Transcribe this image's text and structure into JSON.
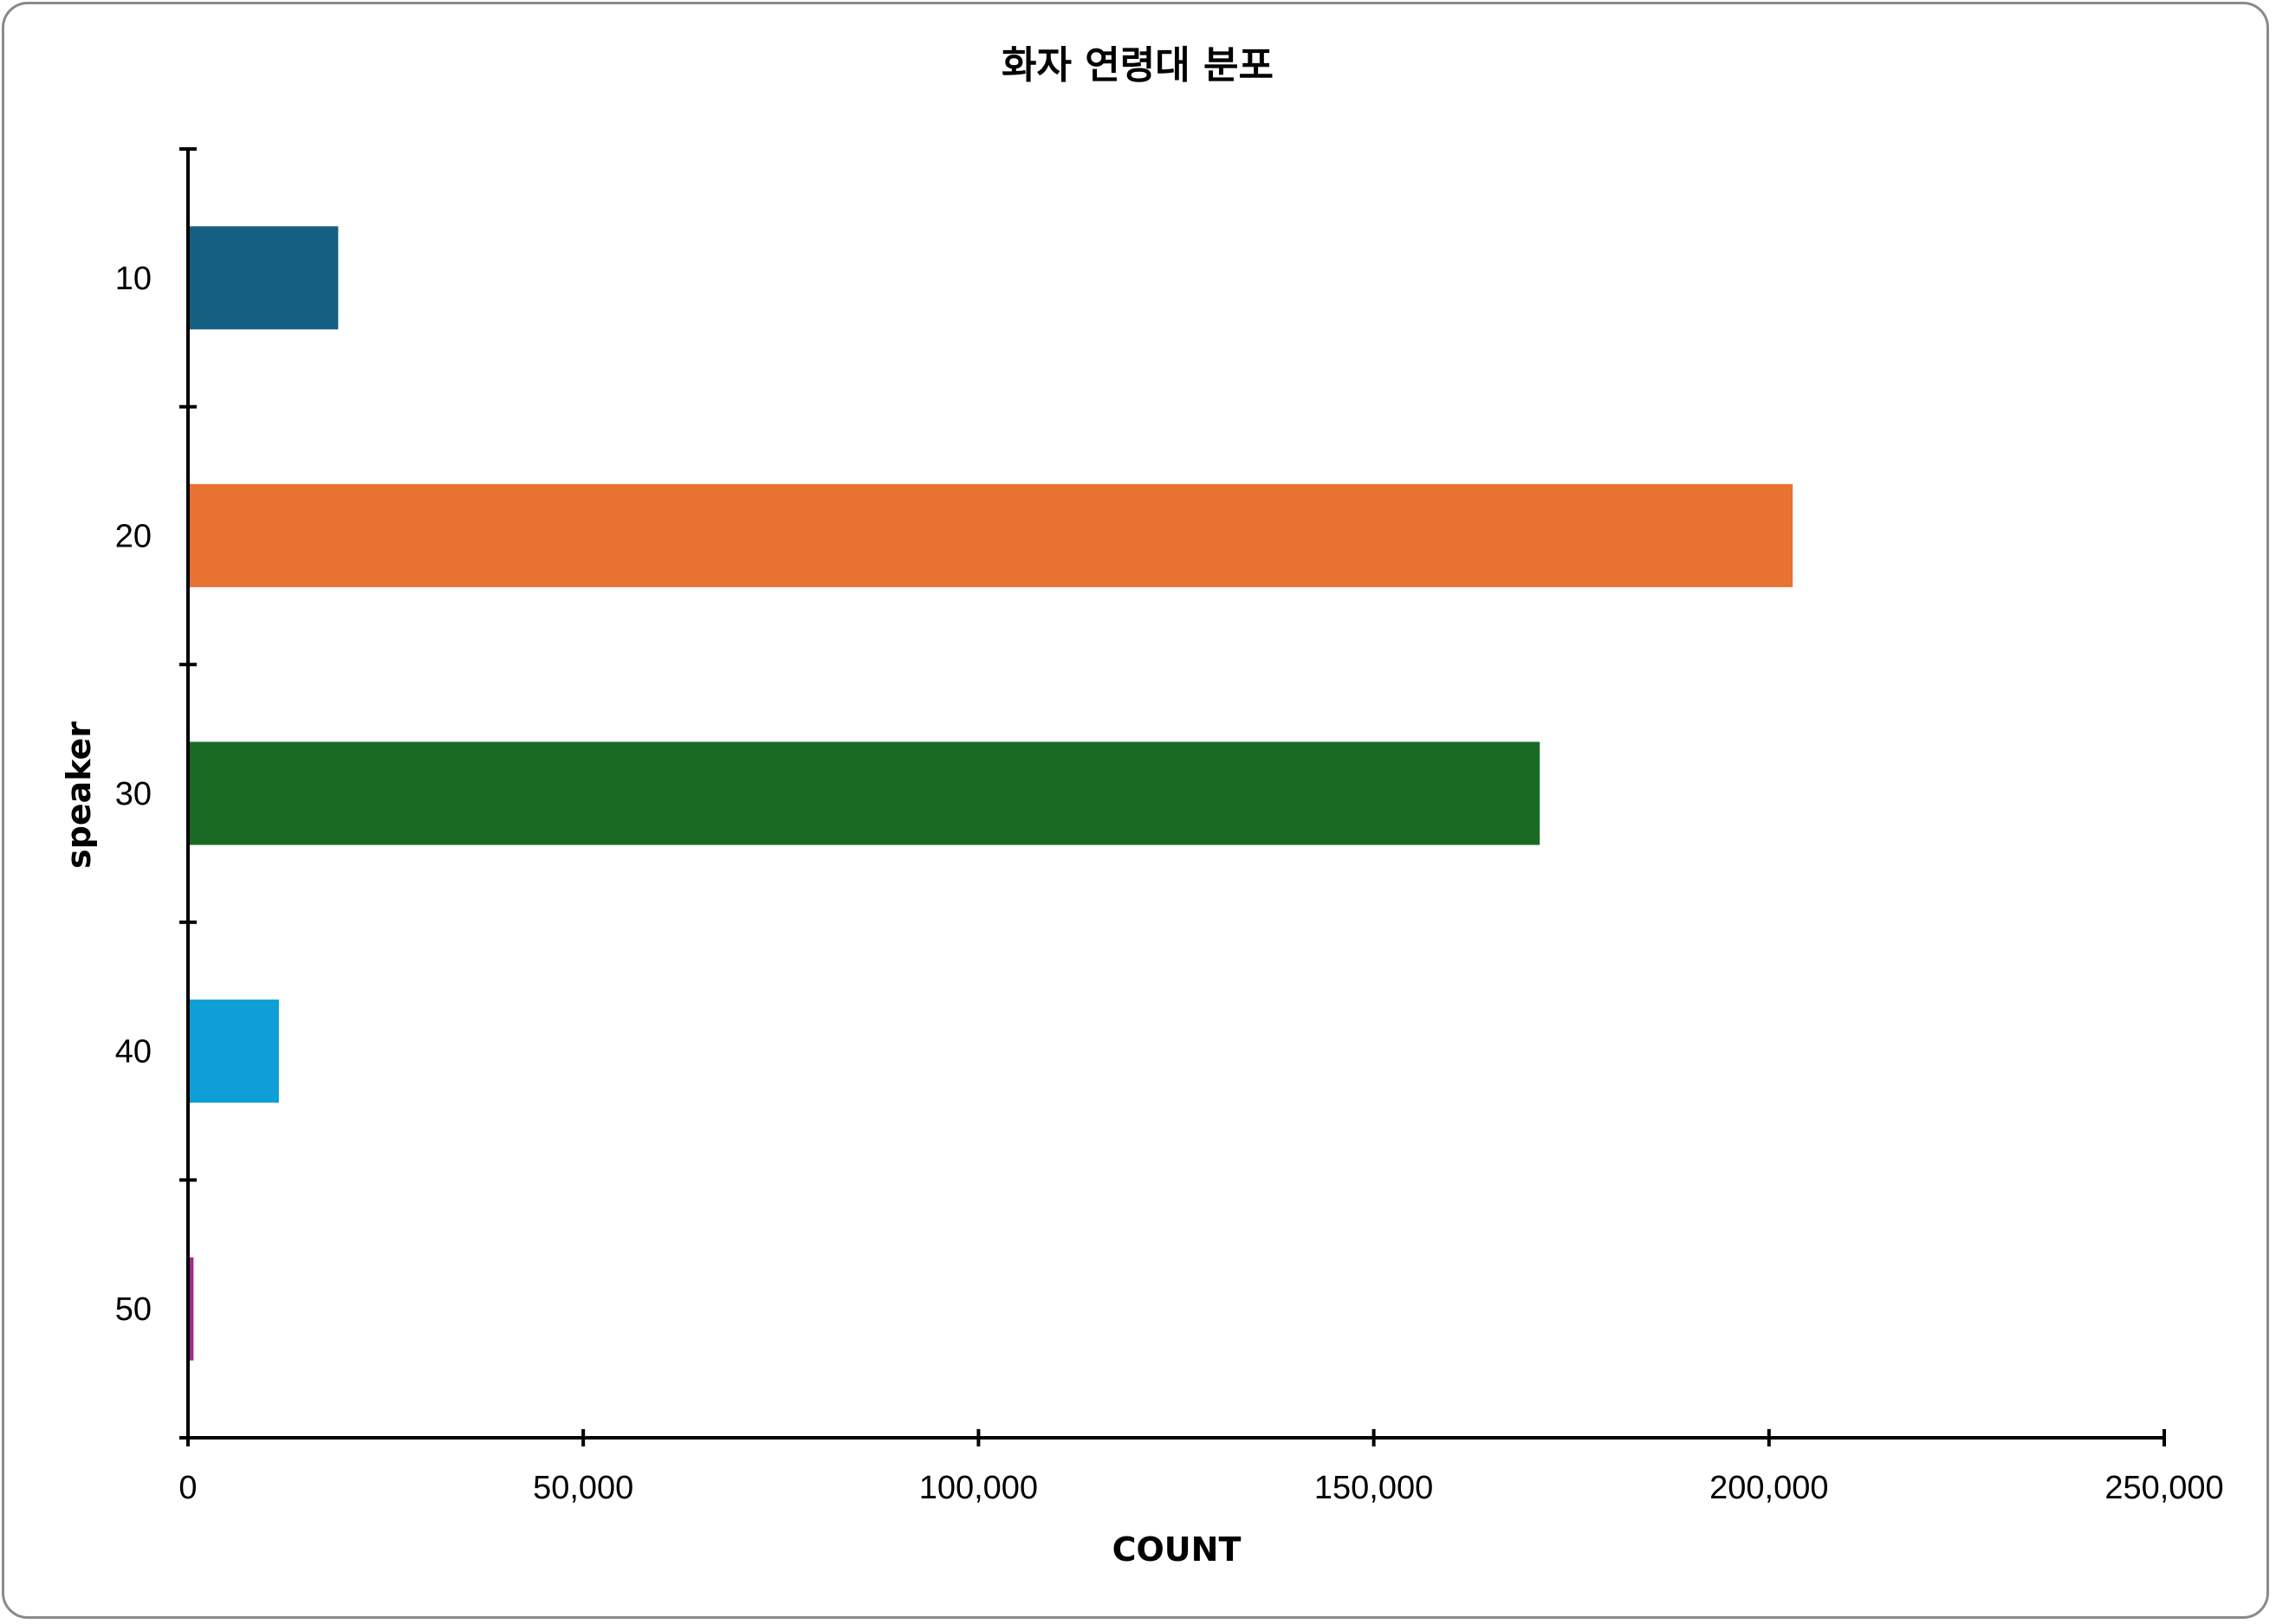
{
  "chart_data": {
    "type": "bar",
    "orientation": "horizontal",
    "title": "화자 연령대 분포",
    "xlabel": "COUNT",
    "ylabel": "speaker",
    "categories": [
      "10",
      "20",
      "30",
      "40",
      "50"
    ],
    "values": [
      19000,
      203000,
      171000,
      11500,
      700
    ],
    "colors": [
      "#155f82",
      "#e97132",
      "#196b24",
      "#0f9ed5",
      "#a02b93"
    ],
    "xlim": [
      0,
      250000
    ],
    "xticks": [
      0,
      50000,
      100000,
      150000,
      200000,
      250000
    ],
    "xtick_labels": [
      "0",
      "50,000",
      "100,000",
      "150,000",
      "200,000",
      "250,000"
    ],
    "grid": false,
    "legend": "none"
  }
}
